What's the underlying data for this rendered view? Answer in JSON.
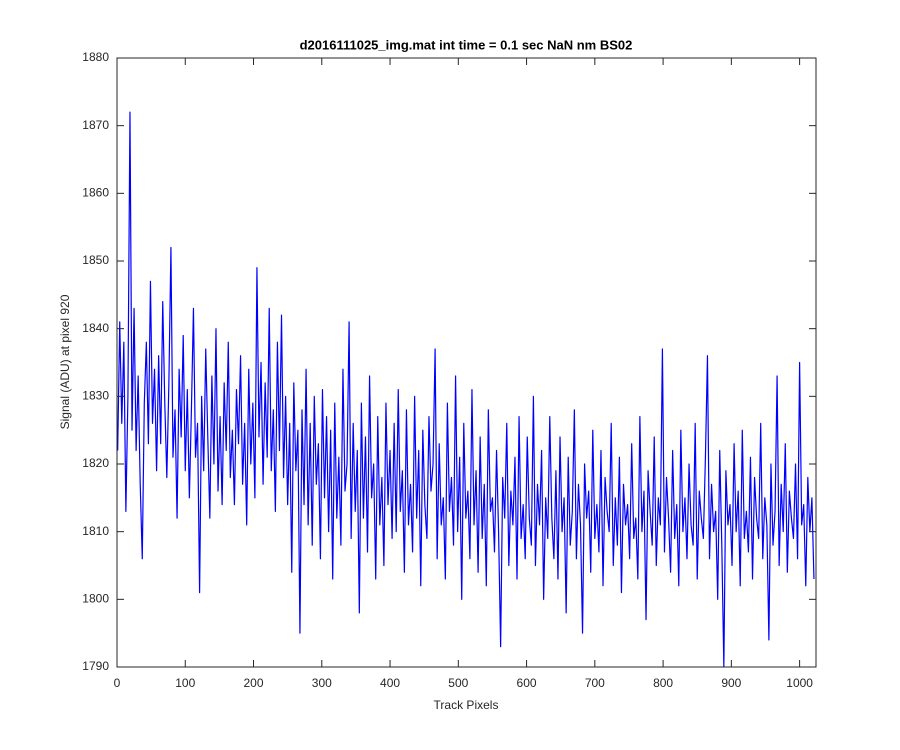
{
  "chart_data": {
    "type": "line",
    "title": "d2016111025_img.mat int time = 0.1 sec  NaN nm BS02",
    "x_label": "Track Pixels",
    "y_label": "Signal (ADU) at pixel 920",
    "xlim": [
      0,
      1024
    ],
    "ylim": [
      1790,
      1880
    ],
    "xticks": [
      0,
      100,
      200,
      300,
      400,
      500,
      600,
      700,
      800,
      900,
      1000
    ],
    "yticks": [
      1790,
      1800,
      1810,
      1820,
      1830,
      1840,
      1850,
      1860,
      1870,
      1880
    ],
    "x": [
      1,
      4,
      7,
      10,
      13,
      16,
      19,
      22,
      25,
      28,
      31,
      34,
      37,
      40,
      43,
      46,
      49,
      52,
      55,
      58,
      61,
      64,
      67,
      70,
      73,
      76,
      79,
      82,
      85,
      88,
      91,
      94,
      97,
      100,
      103,
      106,
      109,
      112,
      115,
      118,
      121,
      124,
      127,
      130,
      133,
      136,
      139,
      142,
      145,
      148,
      151,
      154,
      157,
      160,
      163,
      166,
      169,
      172,
      175,
      178,
      181,
      184,
      187,
      190,
      193,
      196,
      199,
      202,
      205,
      208,
      211,
      214,
      217,
      220,
      223,
      226,
      229,
      232,
      235,
      238,
      241,
      244,
      247,
      250,
      253,
      256,
      259,
      262,
      265,
      268,
      271,
      274,
      277,
      280,
      283,
      286,
      289,
      292,
      295,
      298,
      301,
      304,
      307,
      310,
      313,
      316,
      319,
      322,
      325,
      328,
      331,
      334,
      337,
      340,
      343,
      346,
      349,
      352,
      355,
      358,
      361,
      364,
      367,
      370,
      373,
      376,
      379,
      382,
      385,
      388,
      391,
      394,
      397,
      400,
      403,
      406,
      409,
      412,
      415,
      418,
      421,
      424,
      427,
      430,
      433,
      436,
      439,
      442,
      445,
      448,
      451,
      454,
      457,
      460,
      463,
      466,
      469,
      472,
      475,
      478,
      481,
      484,
      487,
      490,
      493,
      496,
      499,
      502,
      505,
      508,
      511,
      514,
      517,
      520,
      523,
      526,
      529,
      532,
      535,
      538,
      541,
      544,
      547,
      550,
      553,
      556,
      559,
      562,
      565,
      568,
      571,
      574,
      577,
      580,
      583,
      586,
      589,
      592,
      595,
      598,
      601,
      604,
      607,
      610,
      613,
      616,
      619,
      622,
      625,
      628,
      631,
      634,
      637,
      640,
      643,
      646,
      649,
      652,
      655,
      658,
      661,
      664,
      667,
      670,
      673,
      676,
      679,
      682,
      685,
      688,
      691,
      694,
      697,
      700,
      703,
      706,
      709,
      712,
      715,
      718,
      721,
      724,
      727,
      730,
      733,
      736,
      739,
      742,
      745,
      748,
      751,
      754,
      757,
      760,
      763,
      766,
      769,
      772,
      775,
      778,
      781,
      784,
      787,
      790,
      793,
      796,
      799,
      802,
      805,
      808,
      811,
      814,
      817,
      820,
      823,
      826,
      829,
      832,
      835,
      838,
      841,
      844,
      847,
      850,
      853,
      856,
      859,
      862,
      865,
      868,
      871,
      874,
      877,
      880,
      883,
      886,
      889,
      892,
      895,
      898,
      901,
      904,
      907,
      910,
      913,
      916,
      919,
      922,
      925,
      928,
      931,
      934,
      937,
      940,
      943,
      946,
      949,
      952,
      955,
      958,
      961,
      964,
      967,
      970,
      973,
      976,
      979,
      982,
      985,
      988,
      991,
      994,
      997,
      1000,
      1003,
      1006,
      1009,
      1012,
      1015,
      1018,
      1021
    ],
    "series": [
      {
        "color": "#0000ff",
        "values": [
          1822,
          1841,
          1826,
          1838,
          1813,
          1830,
          1872,
          1825,
          1843,
          1822,
          1833,
          1817,
          1806,
          1829,
          1838,
          1823,
          1847,
          1826,
          1834,
          1819,
          1836,
          1823,
          1844,
          1829,
          1818,
          1832,
          1852,
          1821,
          1828,
          1812,
          1834,
          1824,
          1839,
          1819,
          1831,
          1815,
          1828,
          1843,
          1821,
          1826,
          1801,
          1830,
          1819,
          1837,
          1824,
          1812,
          1833,
          1820,
          1840,
          1816,
          1827,
          1814,
          1832,
          1822,
          1838,
          1818,
          1825,
          1814,
          1831,
          1823,
          1836,
          1817,
          1826,
          1811,
          1834,
          1820,
          1829,
          1815,
          1849,
          1824,
          1835,
          1817,
          1832,
          1821,
          1843,
          1819,
          1828,
          1813,
          1838,
          1822,
          1842,
          1818,
          1830,
          1814,
          1826,
          1804,
          1832,
          1819,
          1825,
          1795,
          1828,
          1814,
          1834,
          1811,
          1826,
          1808,
          1830,
          1817,
          1823,
          1806,
          1831,
          1815,
          1827,
          1810,
          1825,
          1803,
          1829,
          1812,
          1821,
          1808,
          1834,
          1816,
          1820,
          1841,
          1809,
          1826,
          1813,
          1822,
          1798,
          1829,
          1812,
          1824,
          1807,
          1833,
          1815,
          1820,
          1803,
          1827,
          1811,
          1818,
          1805,
          1829,
          1814,
          1822,
          1809,
          1826,
          1810,
          1831,
          1813,
          1819,
          1804,
          1828,
          1811,
          1817,
          1807,
          1830,
          1812,
          1822,
          1802,
          1825,
          1814,
          1809,
          1827,
          1816,
          1820,
          1837,
          1806,
          1823,
          1811,
          1815,
          1803,
          1829,
          1813,
          1818,
          1808,
          1833,
          1810,
          1821,
          1800,
          1826,
          1812,
          1816,
          1806,
          1831,
          1811,
          1819,
          1804,
          1824,
          1809,
          1817,
          1802,
          1828,
          1813,
          1815,
          1807,
          1822,
          1810,
          1793,
          1818,
          1812,
          1826,
          1805,
          1816,
          1811,
          1821,
          1803,
          1827,
          1809,
          1814,
          1806,
          1824,
          1812,
          1808,
          1830,
          1805,
          1817,
          1811,
          1822,
          1800,
          1815,
          1809,
          1827,
          1812,
          1806,
          1819,
          1803,
          1824,
          1810,
          1815,
          1798,
          1821,
          1808,
          1813,
          1828,
          1806,
          1817,
          1811,
          1795,
          1820,
          1812,
          1816,
          1804,
          1825,
          1809,
          1814,
          1807,
          1822,
          1802,
          1818,
          1813,
          1810,
          1826,
          1805,
          1815,
          1808,
          1821,
          1801,
          1817,
          1811,
          1814,
          1806,
          1823,
          1809,
          1812,
          1803,
          1827,
          1810,
          1816,
          1797,
          1819,
          1813,
          1808,
          1824,
          1805,
          1815,
          1811,
          1837,
          1807,
          1818,
          1812,
          1804,
          1822,
          1809,
          1814,
          1802,
          1825,
          1810,
          1815,
          1806,
          1820,
          1811,
          1808,
          1826,
          1803,
          1816,
          1812,
          1809,
          1821,
          1836,
          1806,
          1817,
          1810,
          1813,
          1800,
          1822,
          1808,
          1790,
          1819,
          1811,
          1814,
          1805,
          1823,
          1810,
          1816,
          1802,
          1825,
          1809,
          1813,
          1807,
          1821,
          1803,
          1818,
          1812,
          1809,
          1826,
          1806,
          1815,
          1811,
          1794,
          1820,
          1808,
          1813,
          1833,
          1805,
          1817,
          1810,
          1823,
          1804,
          1816,
          1812,
          1809,
          1820,
          1806,
          1835,
          1811,
          1814,
          1802,
          1818,
          1810,
          1815,
          1803
        ]
      }
    ]
  }
}
